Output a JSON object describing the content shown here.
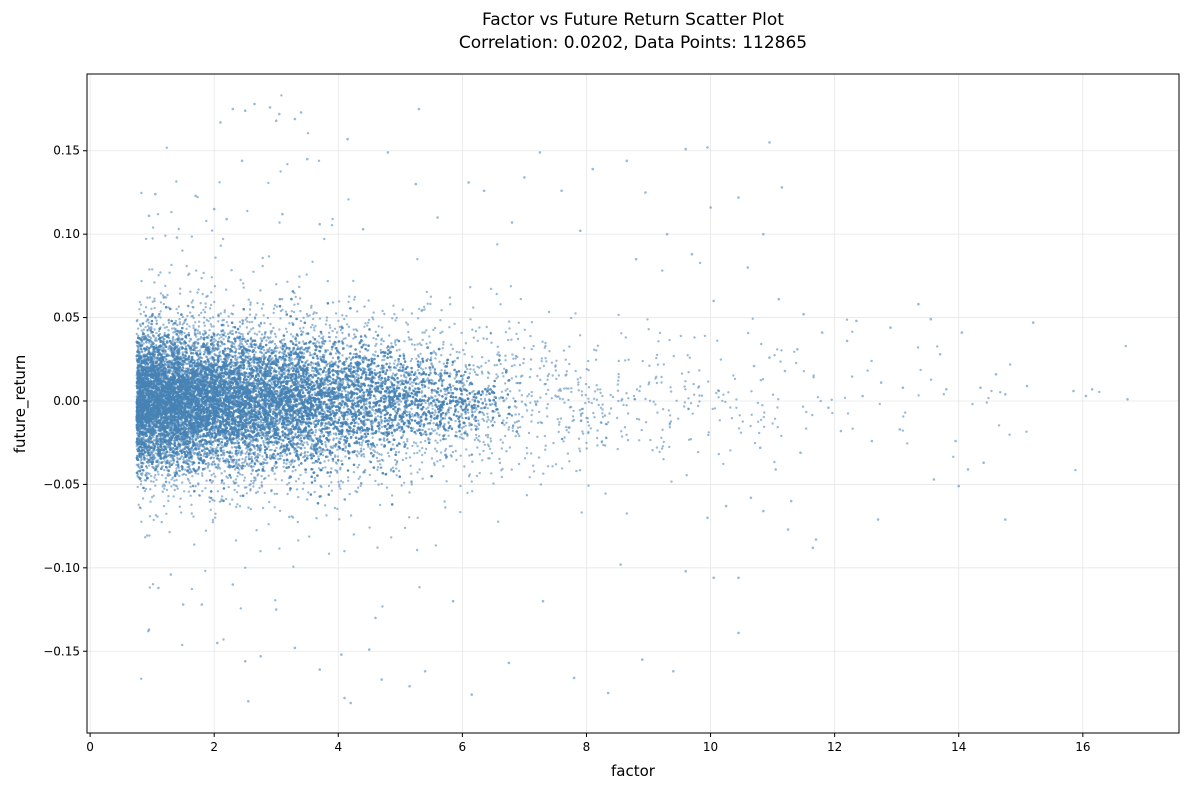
{
  "chart_data": {
    "type": "scatter",
    "title": "Factor vs Future Return Scatter Plot",
    "subtitle": "Correlation: 0.0202, Data Points: 112865",
    "xlabel": "factor",
    "ylabel": "future_return",
    "xlim": [
      -0.05,
      17.55
    ],
    "ylim": [
      -0.199,
      0.196
    ],
    "xticks": [
      0,
      2,
      4,
      6,
      8,
      10,
      12,
      14,
      16
    ],
    "xtick_labels": [
      "0",
      "2",
      "4",
      "6",
      "8",
      "10",
      "12",
      "14",
      "16"
    ],
    "yticks": [
      -0.15,
      -0.1,
      -0.05,
      0.0,
      0.05,
      0.1,
      0.15
    ],
    "ytick_labels": [
      "−0.15",
      "−0.10",
      "−0.05",
      "0.00",
      "0.05",
      "0.10",
      "0.15"
    ],
    "grid": true,
    "legend": "none",
    "marker_color": "#4682b4",
    "marker_alpha": 0.55,
    "points_reported": 112865,
    "correlation": 0.0202,
    "sample_points": [
      [
        2.3,
        0.175
      ],
      [
        2.5,
        0.174
      ],
      [
        2.65,
        0.178
      ],
      [
        2.9,
        0.176
      ],
      [
        3.0,
        0.168
      ],
      [
        3.05,
        0.172
      ],
      [
        3.3,
        0.169
      ],
      [
        3.4,
        0.173
      ],
      [
        4.15,
        0.157
      ],
      [
        5.3,
        0.175
      ],
      [
        2.1,
        0.167
      ],
      [
        2.45,
        0.144
      ],
      [
        3.5,
        0.145
      ],
      [
        4.8,
        0.149
      ],
      [
        7.25,
        0.149
      ],
      [
        9.6,
        0.151
      ],
      [
        9.95,
        0.152
      ],
      [
        10.95,
        0.155
      ],
      [
        1.05,
        0.124
      ],
      [
        1.7,
        0.123
      ],
      [
        11.15,
        0.128
      ],
      [
        8.65,
        0.144
      ],
      [
        8.1,
        0.139
      ],
      [
        10.45,
        0.122
      ],
      [
        7.0,
        0.134
      ],
      [
        7.6,
        0.126
      ],
      [
        8.95,
        0.125
      ],
      [
        5.25,
        0.13
      ],
      [
        6.1,
        0.131
      ],
      [
        6.35,
        0.126
      ],
      [
        13.35,
        0.058
      ],
      [
        13.55,
        0.049
      ],
      [
        14.05,
        0.041
      ],
      [
        15.2,
        0.047
      ],
      [
        12.35,
        0.048
      ],
      [
        12.9,
        0.044
      ],
      [
        11.8,
        0.041
      ],
      [
        11.5,
        0.052
      ],
      [
        12.2,
        0.036
      ],
      [
        13.7,
        0.028
      ],
      [
        13.1,
        0.008
      ],
      [
        13.8,
        0.007
      ],
      [
        14.35,
        0.008
      ],
      [
        14.6,
        0.016
      ],
      [
        14.75,
        0.004
      ],
      [
        15.1,
        0.009
      ],
      [
        15.85,
        0.006
      ],
      [
        16.05,
        0.003
      ],
      [
        16.15,
        0.007
      ],
      [
        16.72,
        0.001
      ],
      [
        12.75,
        0.011
      ],
      [
        12.45,
        0.003
      ],
      [
        11.9,
        -0.004
      ],
      [
        12.1,
        -0.018
      ],
      [
        12.6,
        -0.024
      ],
      [
        13.05,
        -0.017
      ],
      [
        13.95,
        -0.024
      ],
      [
        14.15,
        -0.041
      ],
      [
        14.4,
        -0.037
      ],
      [
        13.6,
        -0.047
      ],
      [
        12.7,
        -0.071
      ],
      [
        14.0,
        -0.051
      ],
      [
        14.75,
        -0.071
      ],
      [
        11.65,
        -0.088
      ],
      [
        11.7,
        -0.083
      ],
      [
        11.25,
        -0.077
      ],
      [
        10.85,
        -0.066
      ],
      [
        10.45,
        -0.106
      ],
      [
        10.05,
        -0.106
      ],
      [
        10.45,
        -0.139
      ],
      [
        9.4,
        -0.162
      ],
      [
        8.9,
        -0.155
      ],
      [
        8.35,
        -0.175
      ],
      [
        7.8,
        -0.166
      ],
      [
        6.75,
        -0.157
      ],
      [
        6.15,
        -0.176
      ],
      [
        5.4,
        -0.162
      ],
      [
        5.15,
        -0.171
      ],
      [
        4.7,
        -0.167
      ],
      [
        4.5,
        -0.149
      ],
      [
        4.1,
        -0.178
      ],
      [
        4.2,
        -0.181
      ],
      [
        3.7,
        -0.161
      ],
      [
        2.55,
        -0.18
      ],
      [
        2.5,
        -0.156
      ],
      [
        2.75,
        -0.153
      ],
      [
        2.05,
        -0.145
      ],
      [
        3.3,
        -0.148
      ],
      [
        4.05,
        -0.152
      ],
      [
        1.5,
        -0.122
      ],
      [
        0.95,
        -0.137
      ],
      [
        1.8,
        -0.122
      ],
      [
        1.1,
        -0.112
      ],
      [
        1.3,
        -0.104
      ],
      [
        2.3,
        -0.11
      ],
      [
        3.0,
        -0.125
      ],
      [
        4.6,
        -0.13
      ],
      [
        5.85,
        -0.12
      ],
      [
        7.3,
        -0.12
      ],
      [
        8.55,
        -0.098
      ],
      [
        9.6,
        -0.102
      ],
      [
        9.95,
        -0.07
      ],
      [
        10.25,
        -0.063
      ],
      [
        10.65,
        -0.058
      ],
      [
        11.3,
        -0.06
      ],
      [
        11.05,
        -0.041
      ],
      [
        10.8,
        -0.028
      ],
      [
        11.45,
        -0.031
      ],
      [
        10.7,
        0.021
      ],
      [
        11.2,
        0.018
      ],
      [
        0.95,
        0.111
      ],
      [
        1.4,
        0.098
      ],
      [
        2.0,
        0.115
      ],
      [
        2.2,
        0.109
      ],
      [
        3.1,
        0.112
      ],
      [
        3.7,
        0.106
      ],
      [
        4.4,
        0.103
      ],
      [
        5.6,
        0.11
      ],
      [
        6.8,
        0.107
      ],
      [
        7.9,
        0.102
      ],
      [
        9.3,
        0.1
      ],
      [
        10.0,
        0.116
      ],
      [
        10.85,
        0.1
      ],
      [
        9.7,
        0.088
      ],
      [
        8.8,
        0.085
      ],
      [
        10.6,
        0.08
      ],
      [
        10.05,
        0.06
      ],
      [
        11.1,
        0.061
      ],
      [
        11.4,
        0.031
      ],
      [
        10.95,
        0.026
      ]
    ]
  }
}
